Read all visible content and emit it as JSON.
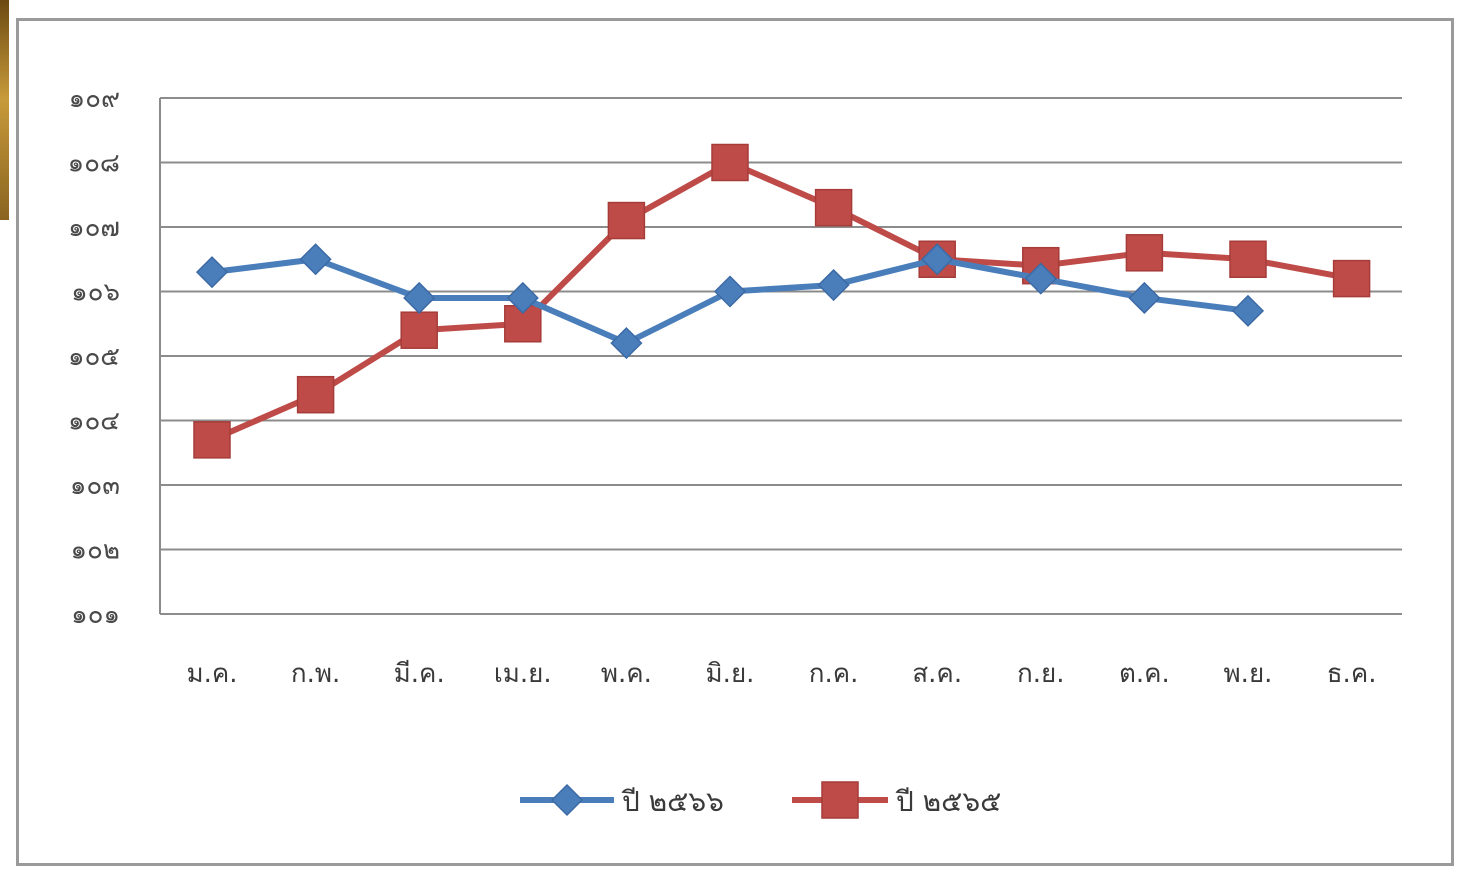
{
  "chart_data": {
    "type": "line",
    "categories": [
      "ม.ค.",
      "ก.พ.",
      "มี.ค.",
      "เม.ย.",
      "พ.ค.",
      "มิ.ย.",
      "ก.ค.",
      "ส.ค.",
      "ก.ย.",
      "ต.ค.",
      "พ.ย.",
      "ธ.ค."
    ],
    "y_tick_labels": [
      "๑๐๑",
      "๑๐๒",
      "๑๐๓",
      "๑๐๔",
      "๑๐๕",
      "๑๐๖",
      "๑๐๗",
      "๑๐๘",
      "๑๐๙"
    ],
    "ylim": [
      101,
      109
    ],
    "grid": true,
    "legend_position": "bottom",
    "series": [
      {
        "name": "ปี ๒๕๖๖",
        "color": "#4a7ebb",
        "marker": "diamond",
        "values": [
          106.3,
          106.5,
          105.9,
          105.9,
          105.2,
          106.0,
          106.1,
          106.5,
          106.2,
          105.9,
          105.7,
          null
        ]
      },
      {
        "name": "ปี ๒๕๖๕",
        "color": "#be4b48",
        "marker": "square",
        "values": [
          103.7,
          104.4,
          105.4,
          105.5,
          107.1,
          108.0,
          107.3,
          106.5,
          106.4,
          106.6,
          106.5,
          106.2
        ]
      }
    ]
  }
}
